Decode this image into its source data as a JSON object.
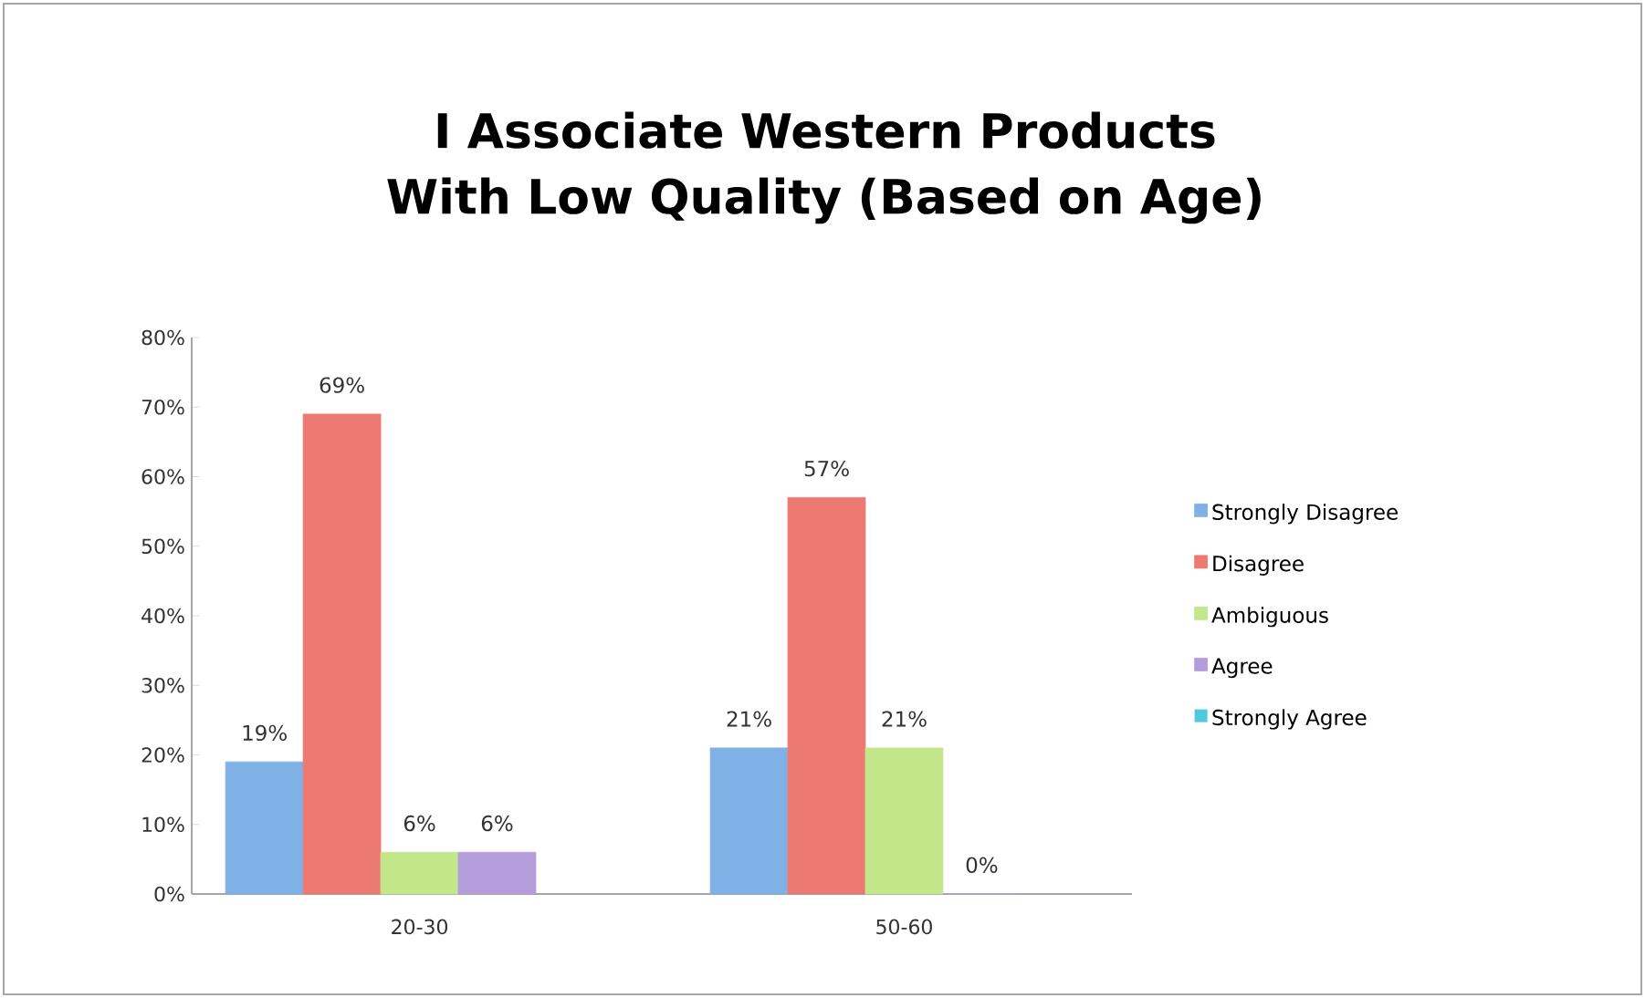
{
  "chart_data": {
    "type": "bar",
    "title": "I Associate Western Products With Low Quality (Based on Age)",
    "categories": [
      "20-30",
      "50-60"
    ],
    "series": [
      {
        "name": "Strongly Disagree",
        "color": "#7fb0e6",
        "values": [
          19,
          21
        ],
        "value_labels": [
          "19%",
          "21%"
        ]
      },
      {
        "name": "Disagree",
        "color": "#ec7a72",
        "values": [
          69,
          57
        ],
        "value_labels": [
          "69%",
          "57%"
        ]
      },
      {
        "name": "Ambiguous",
        "color": "#c4e68a",
        "values": [
          6,
          21
        ],
        "value_labels": [
          "6%",
          "21%"
        ]
      },
      {
        "name": "Agree",
        "color": "#b39ddb",
        "values": [
          6,
          0
        ],
        "value_labels": [
          "6%",
          "0%"
        ]
      },
      {
        "name": "Strongly Agree",
        "color": "#4fc9e0",
        "values": [
          null,
          null
        ],
        "value_labels": [
          null,
          null
        ]
      }
    ],
    "ylim": [
      0,
      80
    ],
    "yticks": [
      {
        "value": 0,
        "label": "0%"
      },
      {
        "value": 10,
        "label": "10%"
      },
      {
        "value": 20,
        "label": "20%"
      },
      {
        "value": 30,
        "label": "30%"
      },
      {
        "value": 40,
        "label": "40%"
      },
      {
        "value": 50,
        "label": "50%"
      },
      {
        "value": 60,
        "label": "60%"
      },
      {
        "value": 70,
        "label": "70%"
      },
      {
        "value": 80,
        "label": "80%"
      }
    ],
    "grid": false,
    "legend": "right"
  }
}
